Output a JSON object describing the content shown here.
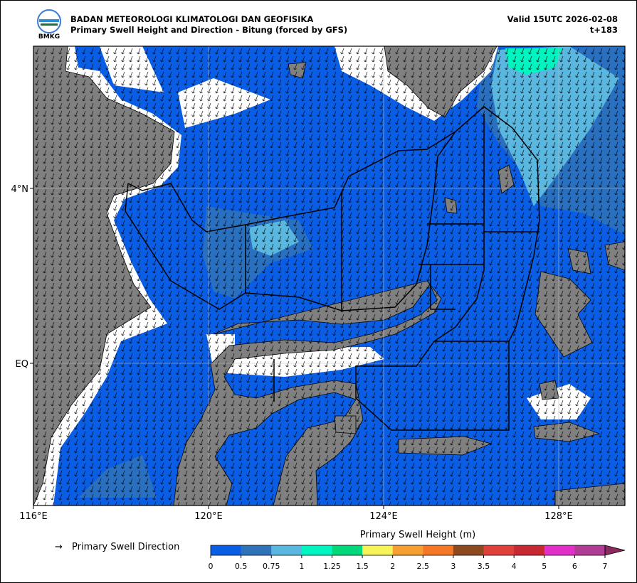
{
  "header": {
    "title": "BADAN METEOROLOGI KLIMATOLOGI DAN GEOFISIKA",
    "subtitle": "Primary Swell Height and Direction - Bitung (forced by GFS)",
    "valid": "Valid 15UTC 2026-02-08",
    "step": "t+183",
    "logo_text": "BMKG"
  },
  "map": {
    "xticks": [
      "116°E",
      "120°E",
      "124°E",
      "128°E"
    ],
    "yticks": [
      "4°N",
      "EQ"
    ],
    "sea_color": "#0a5ee6",
    "land_color": "#808080"
  },
  "legend": {
    "arrow_symbol": "→",
    "arrow_label": "Primary Swell Direction"
  },
  "colorbar": {
    "title": "Primary Swell Height (m)",
    "ticks": [
      "0",
      "0.5",
      "0.75",
      "1",
      "1.25",
      "1.5",
      "2",
      "2.5",
      "3",
      "3.5",
      "4",
      "5",
      "6",
      "7"
    ],
    "colors": [
      "#0a5ee6",
      "#2f73b8",
      "#5ab7e0",
      "#00f5c0",
      "#00d87a",
      "#f5f55a",
      "#f5a030",
      "#f57828",
      "#8c4a1e",
      "#e0403a",
      "#c82832",
      "#e030c8",
      "#b03c96"
    ],
    "extend_color": "#8c2a60"
  }
}
